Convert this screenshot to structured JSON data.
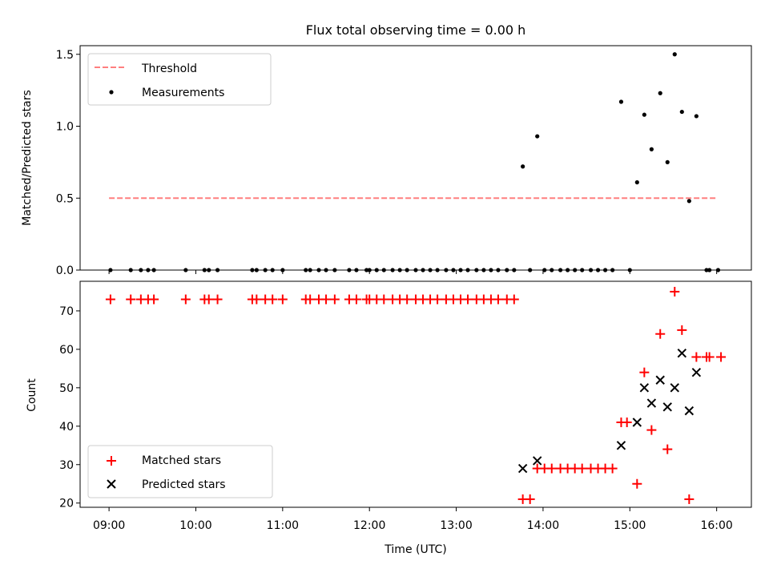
{
  "figure": {
    "title": "Flux total observing time = 0.00 h"
  },
  "chart_data": [
    {
      "type": "scatter",
      "panel": "top",
      "title": "Flux total observing time = 0.00 h",
      "xlabel": "",
      "ylabel": "Matched/Predicted stars",
      "xlim": [
        "08:40",
        "16:24"
      ],
      "ylim": [
        0.0,
        1.56
      ],
      "yticks": [
        0.0,
        0.5,
        1.0,
        1.5
      ],
      "ytick_labels": [
        "0.0",
        "0.5",
        "1.0",
        "1.5"
      ],
      "legend_position": "upper-left",
      "threshold": {
        "name": "Threshold",
        "color": "#ff7f7f",
        "style": "dashed",
        "value": 0.5,
        "x_range": [
          "09:00",
          "16:00"
        ]
      },
      "series": [
        {
          "name": "Measurements",
          "marker": "dot",
          "color": "#000000",
          "points": [
            [
              "09:01",
              0
            ],
            [
              "09:15",
              0
            ],
            [
              "09:22",
              0
            ],
            [
              "09:27",
              0
            ],
            [
              "09:31",
              0
            ],
            [
              "09:53",
              0
            ],
            [
              "10:06",
              0
            ],
            [
              "10:09",
              0
            ],
            [
              "10:15",
              0
            ],
            [
              "10:39",
              0
            ],
            [
              "10:42",
              0
            ],
            [
              "10:48",
              0
            ],
            [
              "10:53",
              0
            ],
            [
              "11:00",
              0
            ],
            [
              "11:16",
              0
            ],
            [
              "11:19",
              0
            ],
            [
              "11:25",
              0
            ],
            [
              "11:30",
              0
            ],
            [
              "11:36",
              0
            ],
            [
              "11:46",
              0
            ],
            [
              "11:51",
              0
            ],
            [
              "11:58",
              0
            ],
            [
              "12:00",
              0
            ],
            [
              "12:05",
              0
            ],
            [
              "12:10",
              0
            ],
            [
              "12:16",
              0
            ],
            [
              "12:21",
              0
            ],
            [
              "12:26",
              0
            ],
            [
              "12:32",
              0
            ],
            [
              "12:37",
              0
            ],
            [
              "12:42",
              0
            ],
            [
              "12:47",
              0
            ],
            [
              "12:53",
              0
            ],
            [
              "12:58",
              0
            ],
            [
              "13:03",
              0
            ],
            [
              "13:08",
              0
            ],
            [
              "13:14",
              0
            ],
            [
              "13:19",
              0
            ],
            [
              "13:24",
              0
            ],
            [
              "13:29",
              0
            ],
            [
              "13:35",
              0
            ],
            [
              "13:40",
              0
            ],
            [
              "13:46",
              0.72
            ],
            [
              "13:51",
              0
            ],
            [
              "13:56",
              0.93
            ],
            [
              "14:01",
              0
            ],
            [
              "14:06",
              0
            ],
            [
              "14:12",
              0
            ],
            [
              "14:17",
              0
            ],
            [
              "14:22",
              0
            ],
            [
              "14:27",
              0
            ],
            [
              "14:33",
              0
            ],
            [
              "14:38",
              0
            ],
            [
              "14:43",
              0
            ],
            [
              "14:48",
              0
            ],
            [
              "14:54",
              1.17
            ],
            [
              "15:00",
              0
            ],
            [
              "15:05",
              0.61
            ],
            [
              "15:10",
              1.08
            ],
            [
              "15:15",
              0.84
            ],
            [
              "15:21",
              1.23
            ],
            [
              "15:26",
              0.75
            ],
            [
              "15:31",
              1.5
            ],
            [
              "15:36",
              1.1
            ],
            [
              "15:41",
              0.48
            ],
            [
              "15:46",
              1.07
            ],
            [
              "15:53",
              0
            ],
            [
              "15:55",
              0
            ],
            [
              "16:01",
              0
            ]
          ]
        }
      ]
    },
    {
      "type": "scatter",
      "panel": "bottom",
      "xlabel": "Time (UTC)",
      "ylabel": "Count",
      "xlim": [
        "08:40",
        "16:24"
      ],
      "ylim": [
        18.9,
        77.7
      ],
      "xticks": [
        "09:00",
        "10:00",
        "11:00",
        "12:00",
        "13:00",
        "14:00",
        "15:00",
        "16:00"
      ],
      "xtick_labels": [
        "09:00",
        "10:00",
        "11:00",
        "12:00",
        "13:00",
        "14:00",
        "15:00",
        "16:00"
      ],
      "yticks": [
        20,
        30,
        40,
        50,
        60,
        70
      ],
      "ytick_labels": [
        "20",
        "30",
        "40",
        "50",
        "60",
        "70"
      ],
      "legend_position": "lower-left",
      "series": [
        {
          "name": "Matched stars",
          "marker": "plus",
          "color": "#ff0000",
          "points": [
            [
              "09:01",
              73
            ],
            [
              "09:15",
              73
            ],
            [
              "09:22",
              73
            ],
            [
              "09:27",
              73
            ],
            [
              "09:31",
              73
            ],
            [
              "09:53",
              73
            ],
            [
              "10:06",
              73
            ],
            [
              "10:09",
              73
            ],
            [
              "10:15",
              73
            ],
            [
              "10:39",
              73
            ],
            [
              "10:42",
              73
            ],
            [
              "10:48",
              73
            ],
            [
              "10:53",
              73
            ],
            [
              "11:00",
              73
            ],
            [
              "11:16",
              73
            ],
            [
              "11:19",
              73
            ],
            [
              "11:25",
              73
            ],
            [
              "11:30",
              73
            ],
            [
              "11:36",
              73
            ],
            [
              "11:46",
              73
            ],
            [
              "11:51",
              73
            ],
            [
              "11:58",
              73
            ],
            [
              "12:00",
              73
            ],
            [
              "12:05",
              73
            ],
            [
              "12:10",
              73
            ],
            [
              "12:16",
              73
            ],
            [
              "12:21",
              73
            ],
            [
              "12:26",
              73
            ],
            [
              "12:32",
              73
            ],
            [
              "12:37",
              73
            ],
            [
              "12:42",
              73
            ],
            [
              "12:47",
              73
            ],
            [
              "12:53",
              73
            ],
            [
              "12:58",
              73
            ],
            [
              "13:03",
              73
            ],
            [
              "13:08",
              73
            ],
            [
              "13:14",
              73
            ],
            [
              "13:19",
              73
            ],
            [
              "13:24",
              73
            ],
            [
              "13:29",
              73
            ],
            [
              "13:35",
              73
            ],
            [
              "13:40",
              73
            ],
            [
              "13:46",
              21
            ],
            [
              "13:51",
              21
            ],
            [
              "13:56",
              29
            ],
            [
              "14:01",
              29
            ],
            [
              "14:06",
              29
            ],
            [
              "14:12",
              29
            ],
            [
              "14:17",
              29
            ],
            [
              "14:22",
              29
            ],
            [
              "14:27",
              29
            ],
            [
              "14:33",
              29
            ],
            [
              "14:38",
              29
            ],
            [
              "14:43",
              29
            ],
            [
              "14:48",
              29
            ],
            [
              "14:54",
              41
            ],
            [
              "14:58",
              41
            ],
            [
              "15:05",
              25
            ],
            [
              "15:10",
              54
            ],
            [
              "15:15",
              39
            ],
            [
              "15:21",
              64
            ],
            [
              "15:26",
              34
            ],
            [
              "15:31",
              75
            ],
            [
              "15:36",
              65
            ],
            [
              "15:41",
              21
            ],
            [
              "15:46",
              58
            ],
            [
              "15:53",
              58
            ],
            [
              "15:55",
              58
            ],
            [
              "16:03",
              58
            ]
          ]
        },
        {
          "name": "Predicted stars",
          "marker": "x",
          "color": "#000000",
          "points": [
            [
              "13:46",
              29
            ],
            [
              "13:56",
              31
            ],
            [
              "14:54",
              35
            ],
            [
              "15:05",
              41
            ],
            [
              "15:10",
              50
            ],
            [
              "15:15",
              46
            ],
            [
              "15:21",
              52
            ],
            [
              "15:26",
              45
            ],
            [
              "15:31",
              50
            ],
            [
              "15:36",
              59
            ],
            [
              "15:41",
              44
            ],
            [
              "15:46",
              54
            ]
          ]
        }
      ]
    }
  ]
}
